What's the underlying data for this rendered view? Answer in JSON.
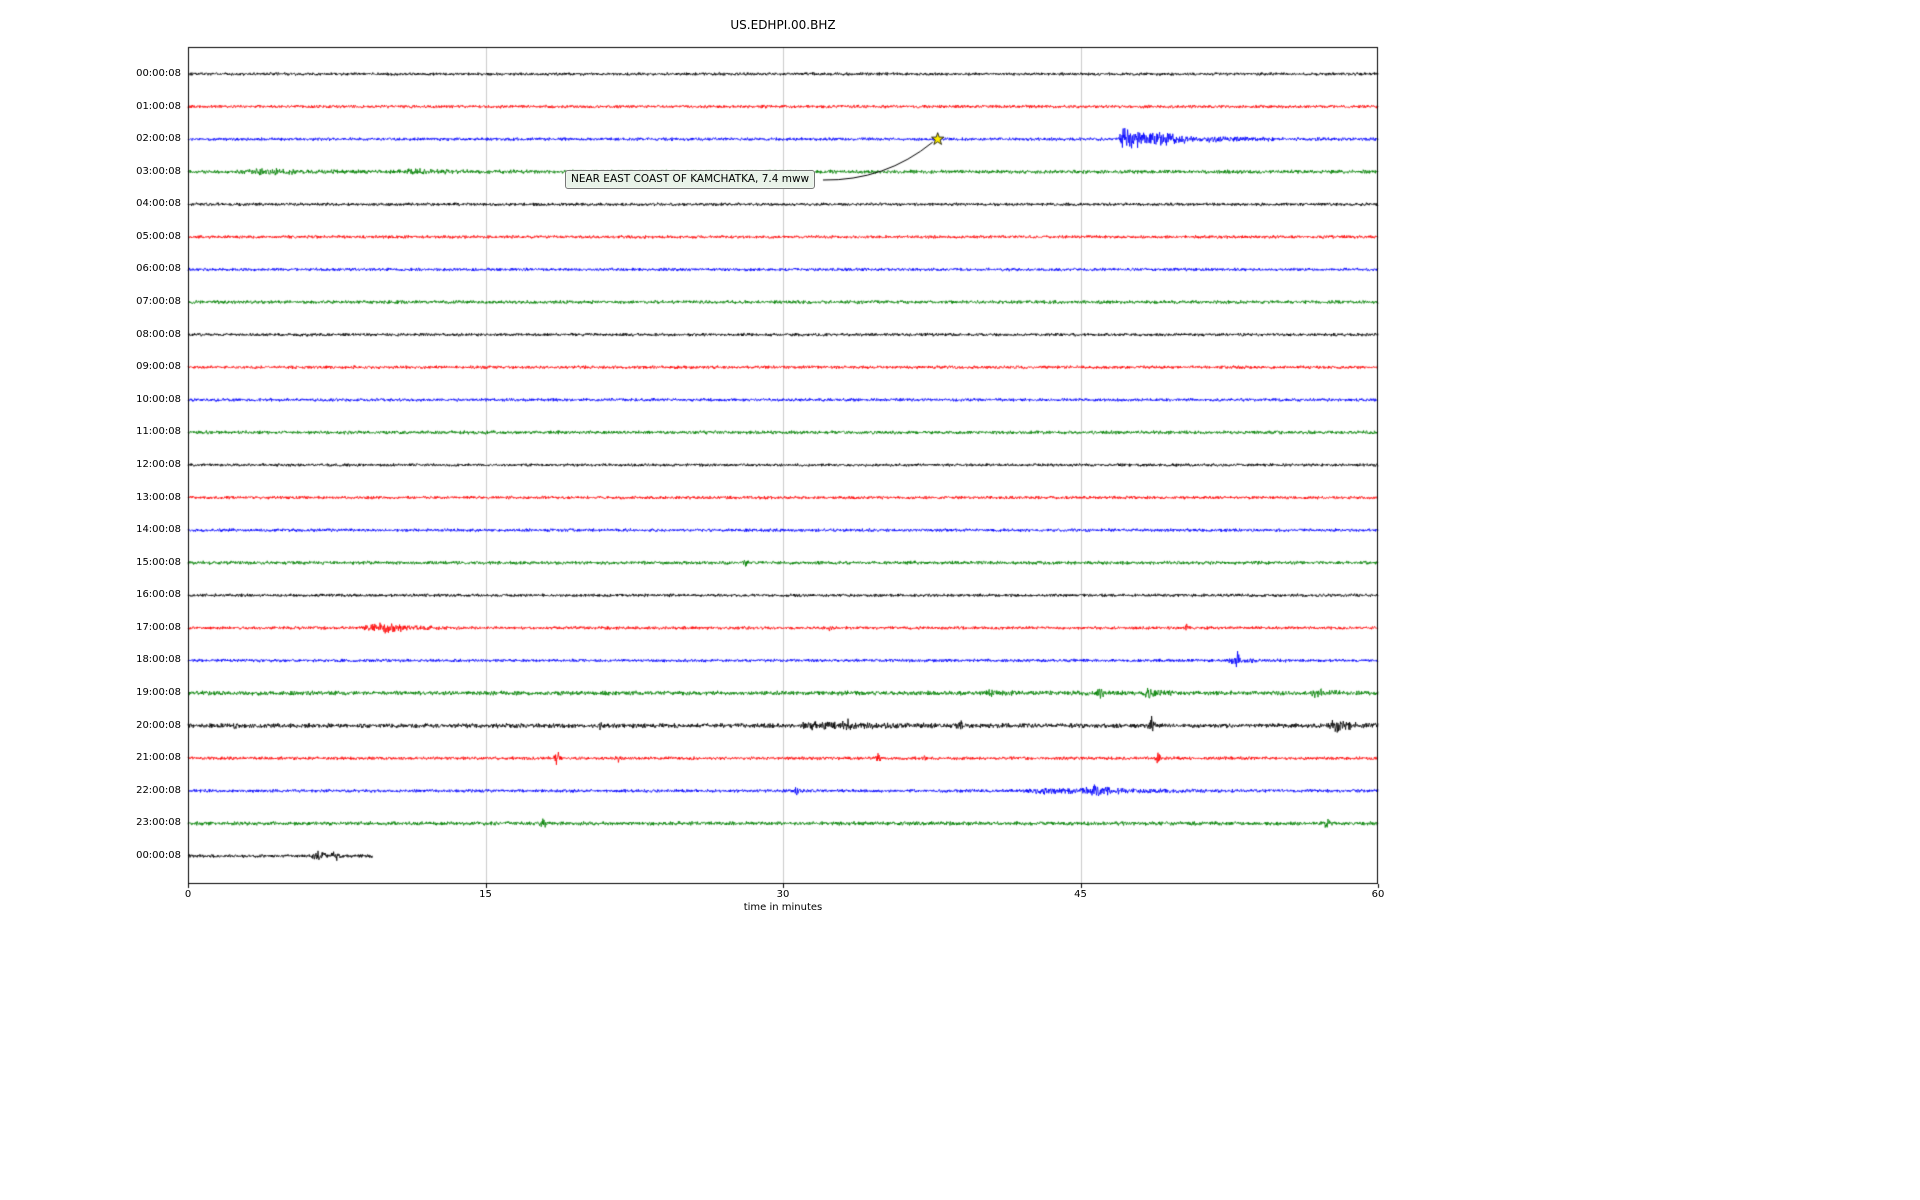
{
  "title": "US.EDHPI.00.BHZ",
  "xlabel": "time in minutes",
  "annotation": {
    "text": "NEAR EAST COAST OF KAMCHATKA, 7.4 mww"
  },
  "chart_data": {
    "type": "line",
    "subtype": "seismogram-helicorder",
    "station": "US.EDHPI.00.BHZ",
    "title": "US.EDHPI.00.BHZ",
    "xlabel": "time in minutes",
    "x_range_minutes": [
      0,
      60
    ],
    "x_tick_values": [
      0,
      15,
      30,
      45,
      60
    ],
    "x_tick_labels": [
      "0",
      "15",
      "30",
      "45",
      "60"
    ],
    "grid": "vertical-gridlines-at-15-30-45",
    "gridline_color": "#cccccc",
    "trace_color_cycle": [
      "#000000",
      "#ff0000",
      "#0000ff",
      "#008000"
    ],
    "event_marker": {
      "row": "02:00:08",
      "minute": 37.8,
      "symbol": "star",
      "color": "#ffee00",
      "label": "NEAR EAST COAST OF KAMCHATKA, 7.4 mww"
    },
    "rows": [
      {
        "label": "00:00:08",
        "color": "#000000",
        "base": 1.7,
        "events": []
      },
      {
        "label": "01:00:08",
        "color": "#ff0000",
        "base": 1.8,
        "events": []
      },
      {
        "label": "02:00:08",
        "color": "#0000ff",
        "base": 1.8,
        "events": [
          {
            "type": "burst",
            "t": 46.9,
            "amp": 16,
            "rise": 0.35,
            "decay": 1.1
          },
          {
            "type": "burst",
            "t": 48.2,
            "amp": 3.5,
            "rise": 0.6,
            "decay": 3.0
          }
        ]
      },
      {
        "label": "03:00:08",
        "color": "#008000",
        "base": 2.1,
        "events": [
          {
            "type": "burst",
            "t": 2.3,
            "amp": 2.2,
            "rise": 1.5,
            "decay": 2.5
          },
          {
            "type": "burst",
            "t": 10.2,
            "amp": 1.8,
            "rise": 1.0,
            "decay": 2.0
          }
        ]
      },
      {
        "label": "04:00:08",
        "color": "#000000",
        "base": 1.8,
        "events": []
      },
      {
        "label": "05:00:08",
        "color": "#ff0000",
        "base": 1.8,
        "events": []
      },
      {
        "label": "06:00:08",
        "color": "#0000ff",
        "base": 1.8,
        "events": []
      },
      {
        "label": "07:00:08",
        "color": "#008000",
        "base": 2.0,
        "events": []
      },
      {
        "label": "08:00:08",
        "color": "#000000",
        "base": 1.8,
        "events": []
      },
      {
        "label": "09:00:08",
        "color": "#ff0000",
        "base": 1.8,
        "events": []
      },
      {
        "label": "10:00:08",
        "color": "#0000ff",
        "base": 1.8,
        "events": []
      },
      {
        "label": "11:00:08",
        "color": "#008000",
        "base": 2.0,
        "events": []
      },
      {
        "label": "12:00:08",
        "color": "#000000",
        "base": 1.7,
        "events": []
      },
      {
        "label": "13:00:08",
        "color": "#ff0000",
        "base": 1.8,
        "events": []
      },
      {
        "label": "14:00:08",
        "color": "#0000ff",
        "base": 1.8,
        "events": []
      },
      {
        "label": "15:00:08",
        "color": "#008000",
        "base": 2.0,
        "events": [
          {
            "type": "spike",
            "t": 28.1,
            "amp": 2.8,
            "w": 0.08
          }
        ]
      },
      {
        "label": "16:00:08",
        "color": "#000000",
        "base": 1.8,
        "events": []
      },
      {
        "label": "17:00:08",
        "color": "#ff0000",
        "base": 1.8,
        "events": [
          {
            "type": "burst",
            "t": 8.8,
            "amp": 5.5,
            "rise": 0.8,
            "decay": 1.3
          },
          {
            "type": "spike",
            "t": 32.4,
            "amp": 2.6,
            "w": 0.07
          },
          {
            "type": "spike",
            "t": 50.4,
            "amp": 4.0,
            "w": 0.07
          }
        ]
      },
      {
        "label": "18:00:08",
        "color": "#0000ff",
        "base": 1.8,
        "events": [
          {
            "type": "burst",
            "t": 52.2,
            "amp": 2.5,
            "rise": 0.4,
            "decay": 1.0
          },
          {
            "type": "spike",
            "t": 52.9,
            "amp": 8.5,
            "w": 0.06
          }
        ]
      },
      {
        "label": "19:00:08",
        "color": "#008000",
        "base": 2.5,
        "events": [
          {
            "type": "burst",
            "t": 40.2,
            "amp": 3.0,
            "rise": 0.2,
            "decay": 0.5
          },
          {
            "type": "spike",
            "t": 46.0,
            "amp": 5.5,
            "w": 0.1
          },
          {
            "type": "burst",
            "t": 48.1,
            "amp": 4.5,
            "rise": 0.2,
            "decay": 0.5
          },
          {
            "type": "burst",
            "t": 56.6,
            "amp": 5.5,
            "rise": 0.2,
            "decay": 0.6
          }
        ]
      },
      {
        "label": "20:00:08",
        "color": "#000000",
        "base": 2.6,
        "events": [
          {
            "type": "spike",
            "t": 2.4,
            "amp": 3.5,
            "w": 0.08
          },
          {
            "type": "spike",
            "t": 20.8,
            "amp": 3.0,
            "w": 0.08
          },
          {
            "type": "burst",
            "t": 30.7,
            "amp": 3.5,
            "rise": 0.5,
            "decay": 3.0
          },
          {
            "type": "spike",
            "t": 33.2,
            "amp": 4.0,
            "w": 0.1
          },
          {
            "type": "spike",
            "t": 38.9,
            "amp": 6.5,
            "w": 0.09
          },
          {
            "type": "spike",
            "t": 48.6,
            "amp": 7.5,
            "w": 0.09
          },
          {
            "type": "burst",
            "t": 57.5,
            "amp": 5.5,
            "rise": 0.3,
            "decay": 0.8
          }
        ]
      },
      {
        "label": "21:00:08",
        "color": "#ff0000",
        "base": 1.9,
        "events": [
          {
            "type": "spike",
            "t": 18.6,
            "amp": 7.5,
            "w": 0.08
          },
          {
            "type": "spike",
            "t": 21.7,
            "amp": 4.5,
            "w": 0.07
          },
          {
            "type": "spike",
            "t": 34.8,
            "amp": 4.5,
            "w": 0.07
          },
          {
            "type": "spike",
            "t": 37.1,
            "amp": 3.5,
            "w": 0.07
          },
          {
            "type": "spike",
            "t": 48.9,
            "amp": 6.5,
            "w": 0.08
          }
        ]
      },
      {
        "label": "22:00:08",
        "color": "#0000ff",
        "base": 1.9,
        "events": [
          {
            "type": "spike",
            "t": 30.7,
            "amp": 4.5,
            "w": 0.09
          },
          {
            "type": "burst",
            "t": 42.0,
            "amp": 3.0,
            "rise": 1.5,
            "decay": 2.5
          },
          {
            "type": "burst",
            "t": 45.2,
            "amp": 4.0,
            "rise": 0.4,
            "decay": 1.2
          }
        ]
      },
      {
        "label": "23:00:08",
        "color": "#008000",
        "base": 2.2,
        "events": [
          {
            "type": "spike",
            "t": 17.9,
            "amp": 5.0,
            "w": 0.08
          },
          {
            "type": "spike",
            "t": 57.4,
            "amp": 6.0,
            "w": 0.09
          }
        ]
      },
      {
        "label": "00:00:08",
        "color": "#000000",
        "base": 1.9,
        "span": [
          0,
          9.3
        ],
        "events": [
          {
            "type": "burst",
            "t": 6.2,
            "amp": 4.5,
            "rise": 0.3,
            "decay": 0.7
          },
          {
            "type": "spike",
            "t": 7.4,
            "amp": 3.5,
            "w": 0.1
          }
        ]
      }
    ]
  }
}
